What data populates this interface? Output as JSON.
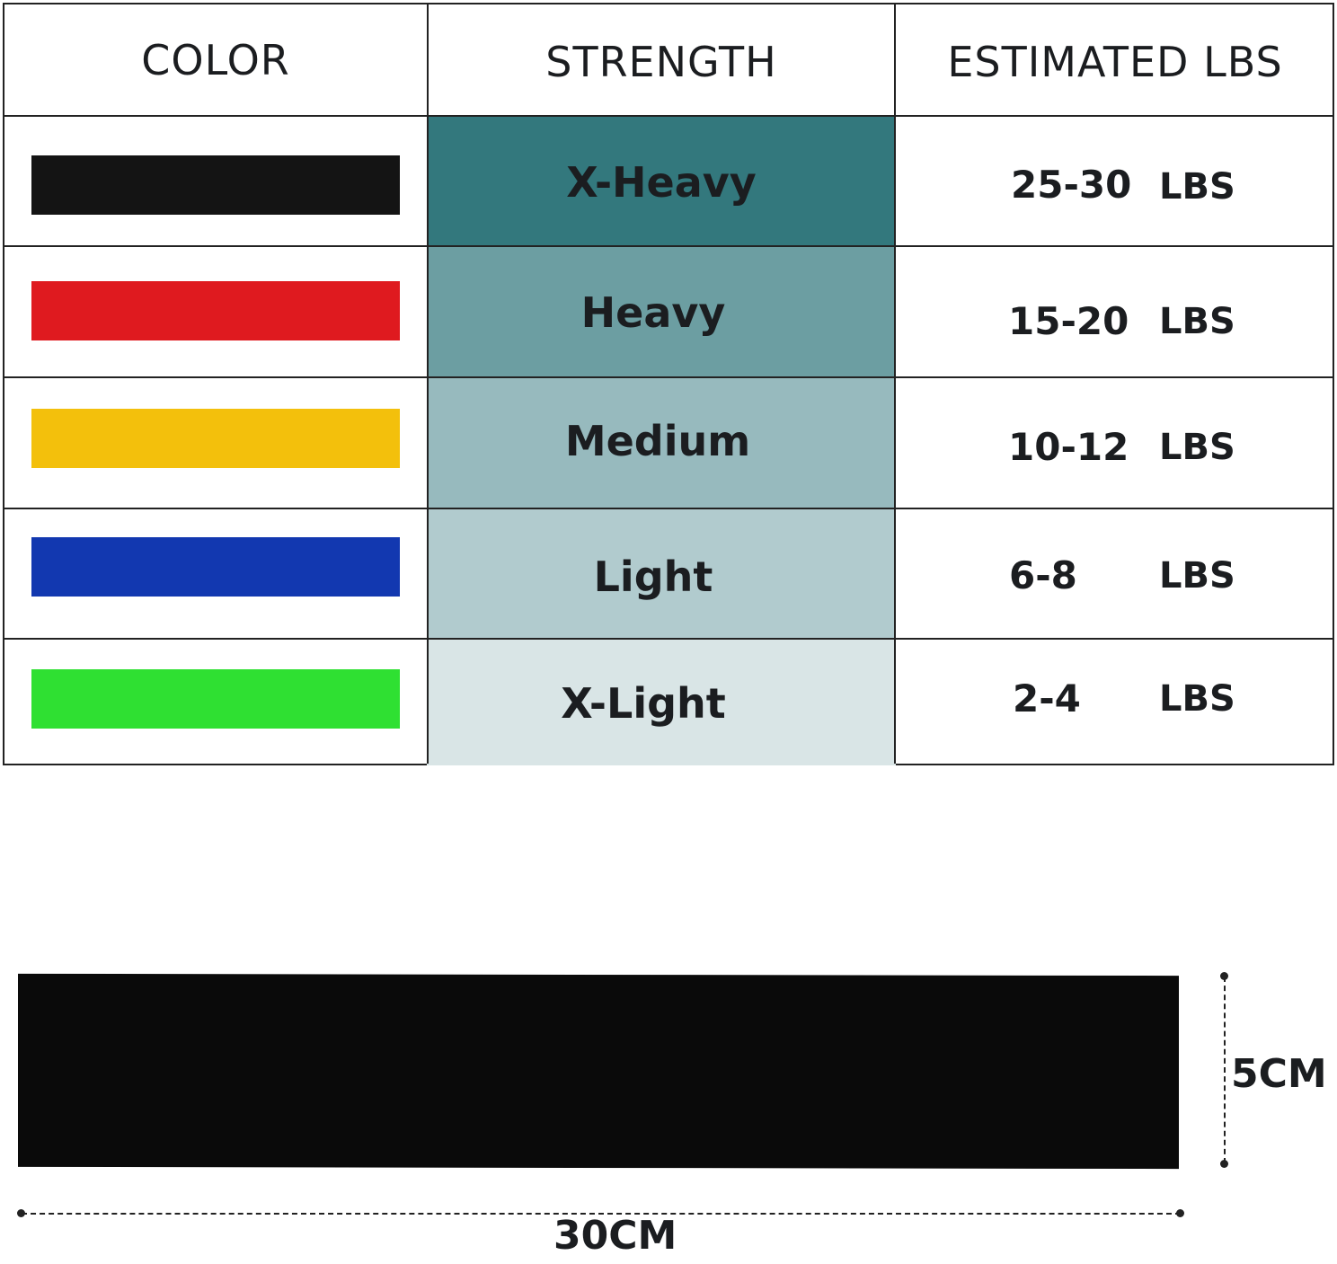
{
  "headers": {
    "color": "COLOR",
    "strength": "STRENGTH",
    "estimated": "ESTIMATED LBS"
  },
  "rows": [
    {
      "band_color": "#141414",
      "strength": "X-Heavy",
      "strength_bg": "#33787d",
      "lbs": "25-30",
      "unit": "LBS"
    },
    {
      "band_color": "#df1a1f",
      "strength": "Heavy",
      "strength_bg": "#6c9ea2",
      "lbs": "15-20",
      "unit": "LBS"
    },
    {
      "band_color": "#f3c00c",
      "strength": "Medium",
      "strength_bg": "#97babe",
      "lbs": "10-12",
      "unit": "LBS"
    },
    {
      "band_color": "#1238b0",
      "strength": "Light",
      "strength_bg": "#b1cbce",
      "lbs": "6-8",
      "unit": "LBS"
    },
    {
      "band_color": "#2fe032",
      "strength": "X-Light",
      "strength_bg": "#d9e5e6",
      "lbs": "2-4",
      "unit": "LBS"
    }
  ],
  "dimensions": {
    "height": "5CM",
    "width": "30CM"
  }
}
